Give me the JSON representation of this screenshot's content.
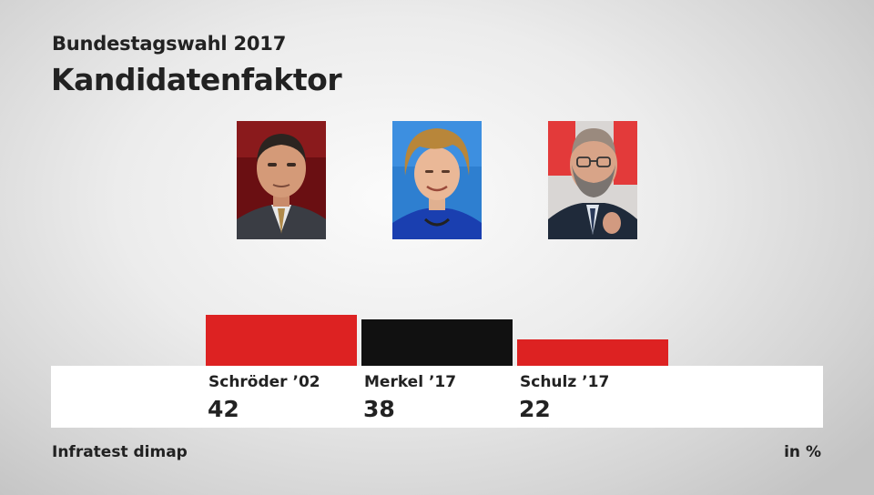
{
  "header": {
    "subtitle": "Bundestagswahl 2017",
    "title": "Kandidatenfaktor"
  },
  "chart_data": {
    "type": "bar",
    "title": "Kandidatenfaktor",
    "subtitle": "Bundestagswahl 2017",
    "categories": [
      "Schröder ’02",
      "Merkel ’17",
      "Schulz ’17"
    ],
    "values": [
      42,
      38,
      22
    ],
    "value_labels": [
      "42",
      "38",
      "22"
    ],
    "colors": [
      "#dd2222",
      "#111111",
      "#dd2222"
    ],
    "ylim": [
      0,
      42
    ],
    "unit": "in %",
    "xlabel": "",
    "ylabel": ""
  },
  "photos": [
    {
      "name": "Schröder",
      "icon": "portrait-schroeder"
    },
    {
      "name": "Merkel",
      "icon": "portrait-merkel"
    },
    {
      "name": "Schulz",
      "icon": "portrait-schulz"
    }
  ],
  "footer": {
    "source": "Infratest dimap",
    "unit": "in %"
  }
}
